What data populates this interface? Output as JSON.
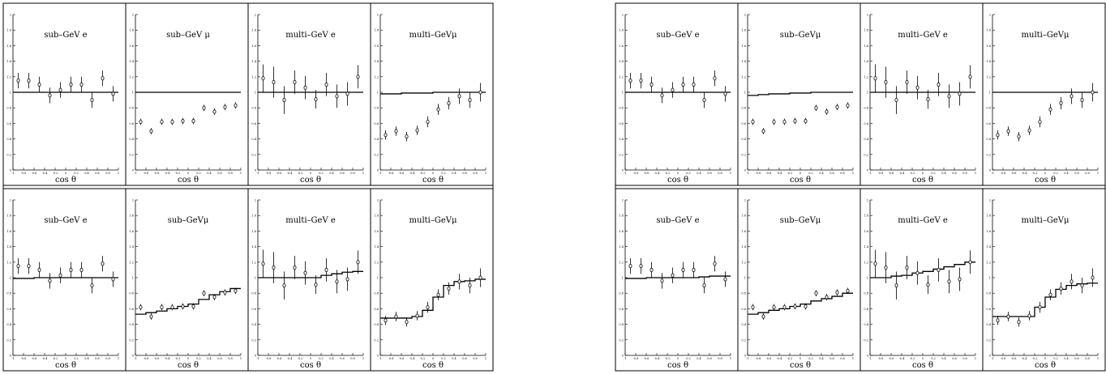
{
  "chart_data": [
    {
      "type": "scatter",
      "panel": "left",
      "xlim": [
        -1,
        1
      ],
      "ylim": [
        0,
        2
      ],
      "x_ticks": [
        "-1",
        "-0.8",
        "-0.6",
        "-0.4",
        "-0.2",
        "0",
        "0.2",
        "0.4",
        "0.6",
        "0.8",
        "1"
      ],
      "y_ticks": [
        "0",
        "0.2",
        "0.4",
        "0.6",
        "0.8",
        "1",
        "1.2",
        "1.4",
        "1.6",
        "1.8",
        "2"
      ],
      "xlabel": "cos θ",
      "grid": false,
      "subplots": [
        {
          "title": "sub–GeV  e",
          "x": [
            -0.9,
            -0.7,
            -0.5,
            -0.3,
            -0.1,
            0.1,
            0.3,
            0.5,
            0.7,
            0.9
          ],
          "y": [
            1.15,
            1.15,
            1.1,
            0.96,
            1.03,
            1.1,
            1.1,
            0.9,
            1.18,
            0.98
          ],
          "err": [
            0.1,
            0.1,
            0.1,
            0.1,
            0.1,
            0.1,
            0.1,
            0.1,
            0.1,
            0.1
          ],
          "model_steps": [
            1,
            1,
            1,
            1,
            1,
            1,
            1,
            1,
            1,
            1
          ]
        },
        {
          "title": "sub–GeV  μ",
          "x": [
            -0.9,
            -0.7,
            -0.5,
            -0.3,
            -0.1,
            0.1,
            0.3,
            0.5,
            0.7,
            0.9
          ],
          "y": [
            0.62,
            0.5,
            0.62,
            0.62,
            0.63,
            0.63,
            0.8,
            0.75,
            0.81,
            0.83
          ],
          "err": [
            0.04,
            0.04,
            0.04,
            0.04,
            0.04,
            0.04,
            0.04,
            0.04,
            0.04,
            0.04
          ],
          "model_steps": [
            1,
            1,
            1,
            1,
            1,
            1,
            1,
            1,
            1,
            1
          ]
        },
        {
          "title": "multi–GeV  e",
          "x": [
            -0.9,
            -0.7,
            -0.5,
            -0.3,
            -0.1,
            0.1,
            0.3,
            0.5,
            0.7,
            0.9
          ],
          "y": [
            1.18,
            1.13,
            0.9,
            1.13,
            1.06,
            0.91,
            1.1,
            0.95,
            0.98,
            1.2
          ],
          "err": [
            0.18,
            0.2,
            0.18,
            0.15,
            0.15,
            0.12,
            0.15,
            0.15,
            0.15,
            0.15
          ],
          "model_steps": [
            1,
            1,
            1,
            1,
            1,
            1,
            1,
            1,
            1,
            1
          ]
        },
        {
          "title": "multi–GeVμ",
          "x": [
            -0.9,
            -0.7,
            -0.5,
            -0.3,
            -0.1,
            0.1,
            0.3,
            0.5,
            0.7,
            0.9
          ],
          "y": [
            0.45,
            0.5,
            0.43,
            0.51,
            0.62,
            0.78,
            0.86,
            0.95,
            0.9,
            1.0
          ],
          "err": [
            0.06,
            0.06,
            0.06,
            0.06,
            0.07,
            0.07,
            0.08,
            0.1,
            0.1,
            0.12
          ],
          "model_steps": [
            0.98,
            0.98,
            0.99,
            0.99,
            0.99,
            1,
            1,
            1,
            1,
            1
          ]
        },
        {
          "title": "sub–GeV  e",
          "x": [
            -0.9,
            -0.7,
            -0.5,
            -0.3,
            -0.1,
            0.1,
            0.3,
            0.5,
            0.7,
            0.9
          ],
          "y": [
            1.15,
            1.15,
            1.1,
            0.96,
            1.03,
            1.1,
            1.1,
            0.9,
            1.18,
            0.98
          ],
          "err": [
            0.1,
            0.1,
            0.1,
            0.1,
            0.1,
            0.1,
            0.1,
            0.1,
            0.1,
            0.1
          ],
          "model_steps": [
            0.99,
            0.99,
            1,
            1,
            1,
            1,
            1,
            1,
            1,
            1
          ]
        },
        {
          "title": "sub–GeVμ",
          "x": [
            -0.9,
            -0.7,
            -0.5,
            -0.3,
            -0.1,
            0.1,
            0.3,
            0.5,
            0.7,
            0.9
          ],
          "y": [
            0.62,
            0.5,
            0.62,
            0.62,
            0.63,
            0.63,
            0.8,
            0.75,
            0.81,
            0.83
          ],
          "err": [
            0.04,
            0.04,
            0.04,
            0.04,
            0.04,
            0.04,
            0.04,
            0.04,
            0.04,
            0.04
          ],
          "model_steps": [
            0.53,
            0.55,
            0.57,
            0.6,
            0.63,
            0.66,
            0.72,
            0.78,
            0.82,
            0.86
          ]
        },
        {
          "title": "multi–GeV  e",
          "x": [
            -0.9,
            -0.7,
            -0.5,
            -0.3,
            -0.1,
            0.1,
            0.3,
            0.5,
            0.7,
            0.9
          ],
          "y": [
            1.18,
            1.13,
            0.9,
            1.13,
            1.06,
            0.91,
            1.1,
            0.95,
            0.98,
            1.2
          ],
          "err": [
            0.18,
            0.2,
            0.18,
            0.15,
            0.15,
            0.12,
            0.15,
            0.15,
            0.15,
            0.15
          ],
          "model_steps": [
            1,
            1,
            1,
            1,
            1,
            1,
            1.03,
            1.05,
            1.07,
            1.08
          ]
        },
        {
          "title": "multi–GeVμ",
          "x": [
            -0.9,
            -0.7,
            -0.5,
            -0.3,
            -0.1,
            0.1,
            0.3,
            0.5,
            0.7,
            0.9
          ],
          "y": [
            0.45,
            0.5,
            0.43,
            0.51,
            0.62,
            0.78,
            0.86,
            0.95,
            0.9,
            1.0
          ],
          "err": [
            0.06,
            0.06,
            0.06,
            0.06,
            0.07,
            0.07,
            0.08,
            0.1,
            0.1,
            0.12
          ],
          "model_steps": [
            0.48,
            0.48,
            0.48,
            0.5,
            0.58,
            0.75,
            0.9,
            0.95,
            0.96,
            0.98
          ]
        }
      ]
    },
    {
      "type": "scatter",
      "panel": "right",
      "xlim": [
        -1,
        1
      ],
      "ylim": [
        0,
        2
      ],
      "x_ticks": [
        "-1",
        "-0.8",
        "-0.6",
        "-0.4",
        "-0.2",
        "0",
        "0.2",
        "0.4",
        "0.6",
        "0.8",
        "1"
      ],
      "y_ticks": [
        "0",
        "0.2",
        "0.4",
        "0.6",
        "0.8",
        "1",
        "1.2",
        "1.4",
        "1.6",
        "1.8",
        "2"
      ],
      "xlabel": "cos θ",
      "grid": false,
      "subplots": [
        {
          "title": "sub–GeV  e",
          "x": [
            -0.9,
            -0.7,
            -0.5,
            -0.3,
            -0.1,
            0.1,
            0.3,
            0.5,
            0.7,
            0.9
          ],
          "y": [
            1.15,
            1.15,
            1.1,
            0.96,
            1.03,
            1.1,
            1.1,
            0.9,
            1.18,
            0.98
          ],
          "err": [
            0.1,
            0.1,
            0.1,
            0.1,
            0.1,
            0.1,
            0.1,
            0.1,
            0.1,
            0.1
          ],
          "model_steps": [
            1,
            1,
            1,
            1,
            1,
            1,
            1,
            1,
            1,
            1
          ]
        },
        {
          "title": "sub–GeVμ",
          "x": [
            -0.9,
            -0.7,
            -0.5,
            -0.3,
            -0.1,
            0.1,
            0.3,
            0.5,
            0.7,
            0.9
          ],
          "y": [
            0.62,
            0.5,
            0.62,
            0.62,
            0.63,
            0.63,
            0.8,
            0.75,
            0.81,
            0.83
          ],
          "err": [
            0.04,
            0.04,
            0.04,
            0.04,
            0.04,
            0.04,
            0.04,
            0.04,
            0.04,
            0.04
          ],
          "model_steps": [
            0.96,
            0.97,
            0.98,
            0.98,
            0.99,
            0.99,
            1,
            1,
            1,
            1
          ]
        },
        {
          "title": "multi–GeV  e",
          "x": [
            -0.9,
            -0.7,
            -0.5,
            -0.3,
            -0.1,
            0.1,
            0.3,
            0.5,
            0.7,
            0.9
          ],
          "y": [
            1.18,
            1.13,
            0.9,
            1.13,
            1.06,
            0.91,
            1.1,
            0.95,
            0.98,
            1.2
          ],
          "err": [
            0.18,
            0.2,
            0.18,
            0.15,
            0.15,
            0.12,
            0.15,
            0.15,
            0.15,
            0.15
          ],
          "model_steps": [
            1,
            1,
            1,
            1,
            1,
            1,
            1,
            1,
            1,
            1
          ]
        },
        {
          "title": "multi–GeVμ",
          "x": [
            -0.9,
            -0.7,
            -0.5,
            -0.3,
            -0.1,
            0.1,
            0.3,
            0.5,
            0.7,
            0.9
          ],
          "y": [
            0.45,
            0.5,
            0.43,
            0.51,
            0.62,
            0.78,
            0.86,
            0.95,
            0.9,
            1.0
          ],
          "err": [
            0.06,
            0.06,
            0.06,
            0.06,
            0.07,
            0.07,
            0.08,
            0.1,
            0.1,
            0.12
          ],
          "model_steps": [
            1,
            1,
            1,
            1,
            1,
            1,
            1,
            1,
            1,
            1
          ]
        },
        {
          "title": "sub–GeV  e",
          "x": [
            -0.9,
            -0.7,
            -0.5,
            -0.3,
            -0.1,
            0.1,
            0.3,
            0.5,
            0.7,
            0.9
          ],
          "y": [
            1.15,
            1.15,
            1.1,
            0.96,
            1.03,
            1.1,
            1.1,
            0.9,
            1.18,
            0.98
          ],
          "err": [
            0.1,
            0.1,
            0.1,
            0.1,
            0.1,
            0.1,
            0.1,
            0.1,
            0.1,
            0.1
          ],
          "model_steps": [
            0.99,
            0.99,
            1,
            1,
            1,
            1,
            1,
            1.01,
            1.02,
            1.02
          ]
        },
        {
          "title": "sub–GeVμ",
          "x": [
            -0.9,
            -0.7,
            -0.5,
            -0.3,
            -0.1,
            0.1,
            0.3,
            0.5,
            0.7,
            0.9
          ],
          "y": [
            0.62,
            0.5,
            0.62,
            0.62,
            0.63,
            0.63,
            0.8,
            0.75,
            0.81,
            0.83
          ],
          "err": [
            0.04,
            0.04,
            0.04,
            0.04,
            0.04,
            0.04,
            0.04,
            0.04,
            0.04,
            0.04
          ],
          "model_steps": [
            0.53,
            0.55,
            0.58,
            0.6,
            0.63,
            0.66,
            0.7,
            0.73,
            0.76,
            0.8
          ]
        },
        {
          "title": "multi–GeV  e",
          "x": [
            -0.9,
            -0.7,
            -0.5,
            -0.3,
            -0.1,
            0.1,
            0.3,
            0.5,
            0.7,
            0.9
          ],
          "y": [
            1.18,
            1.13,
            0.9,
            1.13,
            1.06,
            0.91,
            1.1,
            0.95,
            0.98,
            1.2
          ],
          "err": [
            0.18,
            0.2,
            0.18,
            0.15,
            0.15,
            0.12,
            0.15,
            0.15,
            0.15,
            0.15
          ],
          "model_steps": [
            1,
            1,
            1.02,
            1.03,
            1.06,
            1.08,
            1.11,
            1.14,
            1.17,
            1.2
          ]
        },
        {
          "title": "multi–GeVμ",
          "x": [
            -0.9,
            -0.7,
            -0.5,
            -0.3,
            -0.1,
            0.1,
            0.3,
            0.5,
            0.7,
            0.9
          ],
          "y": [
            0.45,
            0.5,
            0.43,
            0.51,
            0.62,
            0.78,
            0.86,
            0.95,
            0.9,
            1.0
          ],
          "err": [
            0.06,
            0.06,
            0.06,
            0.06,
            0.07,
            0.07,
            0.08,
            0.1,
            0.1,
            0.12
          ],
          "model_steps": [
            0.5,
            0.5,
            0.5,
            0.5,
            0.62,
            0.75,
            0.85,
            0.9,
            0.92,
            0.93
          ]
        }
      ]
    }
  ]
}
